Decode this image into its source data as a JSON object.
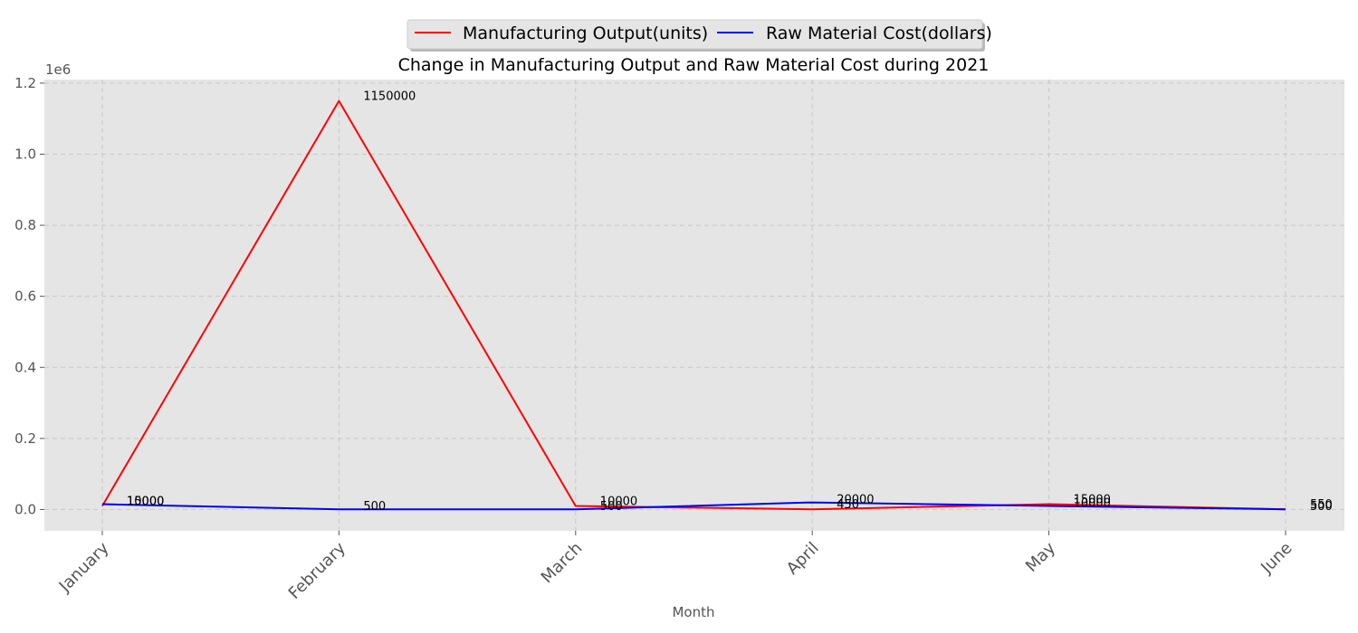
{
  "chart_data": {
    "type": "line",
    "title": "Change in Manufacturing Output and Raw Material Cost during 2021",
    "xlabel": "Month",
    "ylabel": "",
    "y_scale_label": "1e6",
    "categories": [
      "January",
      "February",
      "March",
      "April",
      "May",
      "June"
    ],
    "series": [
      {
        "name": "Manufacturing Output(units)",
        "color": "#ff0000",
        "values": [
          10000,
          1150000,
          10000,
          450,
          15000,
          550
        ],
        "labels": [
          "10000",
          "1150000",
          "10000",
          "450",
          "15000",
          "550"
        ]
      },
      {
        "name": "Raw Material Cost(dollars)",
        "color": "#0000ff",
        "values": [
          15000,
          500,
          500,
          20000,
          10000,
          500
        ],
        "labels": [
          "15000",
          "500",
          "500",
          "20000",
          "10000",
          "500"
        ]
      }
    ],
    "ylim": [
      -60000,
      1210000
    ],
    "yticks": [
      0,
      200000,
      400000,
      600000,
      800000,
      1000000,
      1200000
    ],
    "ytick_labels": [
      "0.0",
      "0.2",
      "0.4",
      "0.6",
      "0.8",
      "1.0",
      "1.2"
    ],
    "grid": true,
    "legend_position": "top-center",
    "background": "#e5e5e5"
  }
}
